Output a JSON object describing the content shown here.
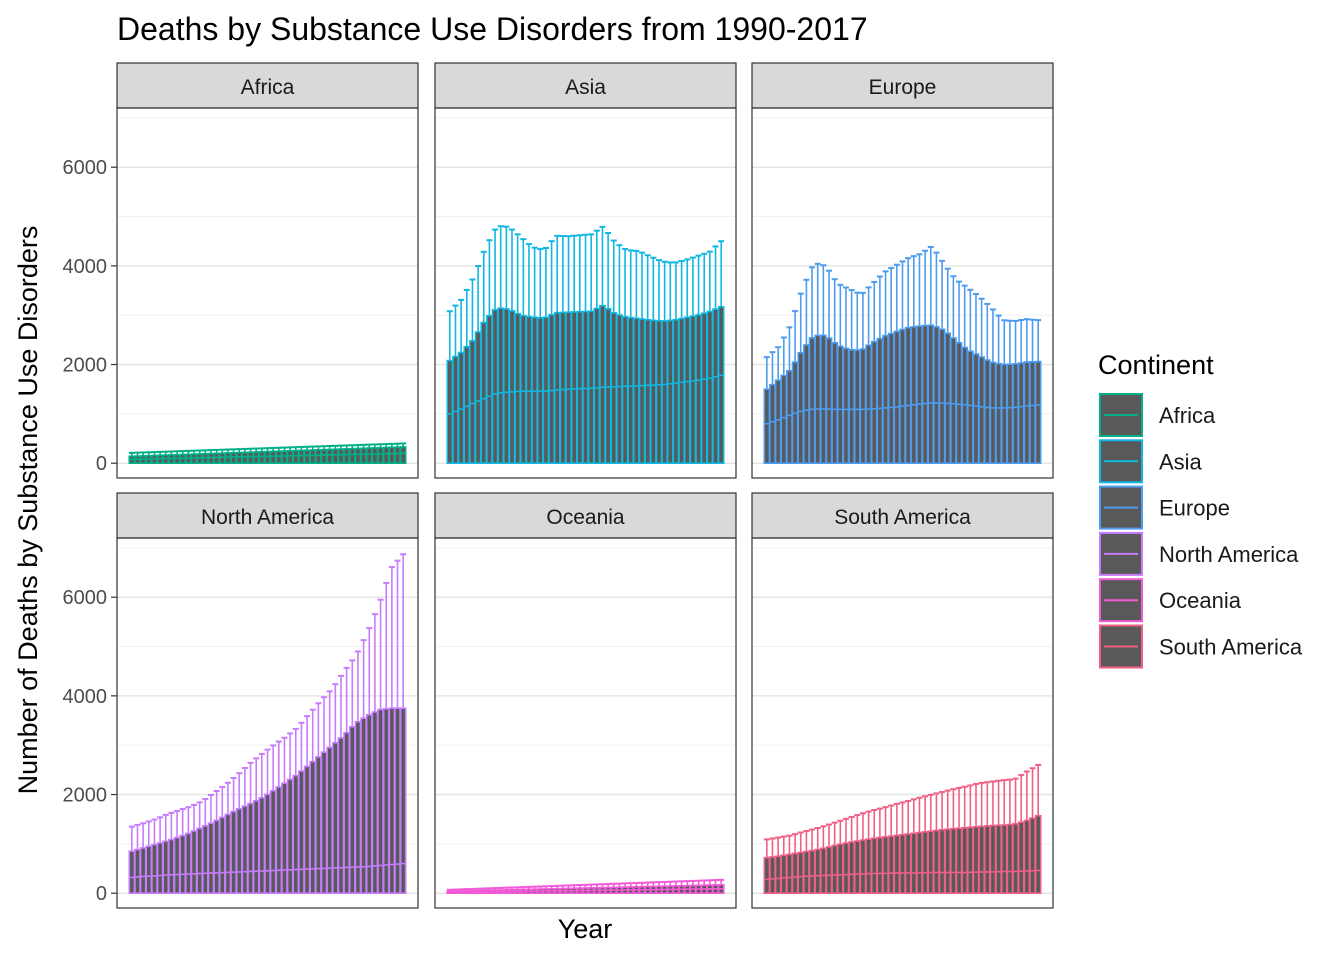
{
  "chart_data": {
    "type": "bar",
    "title": "Deaths by Substance Use Disorders from 1990-2017",
    "xlabel": "Year",
    "ylabel": "Number of Deaths by Substance Use Disorders",
    "ylim": [
      -300,
      7200
    ],
    "yticks": [
      0,
      2000,
      4000,
      6000
    ],
    "ytick_labels": [
      "0",
      "2000",
      "4000",
      "6000"
    ],
    "grid": true,
    "facet_by": "Continent",
    "legend": {
      "title": "Continent",
      "position": "right",
      "entries": [
        "Africa",
        "Asia",
        "Europe",
        "North America",
        "Oceania",
        "South America"
      ]
    },
    "colors": {
      "Africa": "#00b088",
      "Asia": "#10b7e0",
      "Europe": "#4d9cf0",
      "North America": "#c77cff",
      "Oceania": "#f25ad8",
      "South America": "#f25f85",
      "bar_fill": "#595959"
    },
    "panels": [
      {
        "name": "Africa",
        "bars": 49,
        "high": [
          210,
          400
        ],
        "mean": [
          140,
          330
        ],
        "low": [
          80,
          200
        ]
      },
      {
        "name": "Asia",
        "bars": 49,
        "high": [
          3080,
          3320,
          3760,
          4360,
          4810,
          4790,
          4590,
          4380,
          4320,
          4610,
          4600,
          4620,
          4640,
          4800,
          4480,
          4320,
          4300,
          4190,
          4090,
          4060,
          4120,
          4200,
          4280,
          4500
        ],
        "mean": [
          2080,
          2250,
          2500,
          2900,
          3150,
          3120,
          3000,
          2960,
          2940,
          3050,
          3060,
          3070,
          3080,
          3200,
          3030,
          2960,
          2930,
          2900,
          2880,
          2900,
          2950,
          3000,
          3070,
          3170
        ],
        "low": [
          1000,
          1100,
          1220,
          1320,
          1420,
          1440,
          1460,
          1460,
          1460,
          1480,
          1500,
          1510,
          1520,
          1540,
          1550,
          1560,
          1570,
          1580,
          1590,
          1620,
          1650,
          1680,
          1720,
          1780
        ]
      },
      {
        "name": "Europe",
        "bars": 49,
        "high": [
          2150,
          2360,
          2790,
          3530,
          4060,
          4000,
          3640,
          3530,
          3420,
          3650,
          3880,
          4020,
          4160,
          4240,
          4400,
          4050,
          3730,
          3560,
          3380,
          3160,
          2900,
          2880,
          2920,
          2900
        ],
        "mean": [
          1500,
          1690,
          1890,
          2290,
          2590,
          2590,
          2390,
          2300,
          2290,
          2450,
          2580,
          2670,
          2750,
          2780,
          2800,
          2700,
          2500,
          2300,
          2180,
          2050,
          2000,
          2010,
          2050,
          2060
        ],
        "low": [
          800,
          880,
          980,
          1060,
          1100,
          1100,
          1090,
          1090,
          1090,
          1100,
          1120,
          1140,
          1170,
          1200,
          1220,
          1220,
          1200,
          1180,
          1150,
          1120,
          1120,
          1130,
          1160,
          1180
        ]
      },
      {
        "name": "North America",
        "bars": 49,
        "high": [
          1350,
          1420,
          1500,
          1600,
          1680,
          1760,
          1870,
          2040,
          2210,
          2410,
          2630,
          2820,
          3000,
          3160,
          3350,
          3630,
          3900,
          4150,
          4500,
          4820,
          5300,
          5890,
          6600,
          6870
        ],
        "mean": [
          850,
          920,
          990,
          1060,
          1140,
          1230,
          1340,
          1450,
          1580,
          1700,
          1810,
          1930,
          2080,
          2240,
          2400,
          2600,
          2800,
          3000,
          3200,
          3450,
          3600,
          3720,
          3750,
          3750
        ],
        "low": [
          320,
          340,
          350,
          370,
          380,
          390,
          400,
          410,
          420,
          430,
          440,
          450,
          460,
          470,
          480,
          490,
          500,
          510,
          520,
          530,
          540,
          560,
          580,
          600
        ]
      },
      {
        "name": "Oceania",
        "bars": 49,
        "high": [
          70,
          270
        ],
        "mean": [
          40,
          170
        ],
        "low": [
          20,
          90
        ]
      },
      {
        "name": "South America",
        "bars": 49,
        "high": [
          1090,
          1130,
          1170,
          1240,
          1300,
          1370,
          1450,
          1530,
          1610,
          1680,
          1740,
          1810,
          1870,
          1940,
          2000,
          2060,
          2120,
          2170,
          2230,
          2260,
          2290,
          2310,
          2460,
          2600
        ],
        "mean": [
          720,
          750,
          790,
          830,
          870,
          920,
          980,
          1030,
          1070,
          1110,
          1140,
          1170,
          1200,
          1230,
          1260,
          1290,
          1310,
          1330,
          1350,
          1370,
          1380,
          1400,
          1470,
          1570
        ],
        "low": [
          280,
          300,
          320,
          340,
          350,
          360,
          370,
          380,
          390,
          400,
          400,
          410,
          410,
          410,
          420,
          420,
          420,
          420,
          430,
          430,
          440,
          440,
          450,
          460
        ]
      }
    ]
  }
}
